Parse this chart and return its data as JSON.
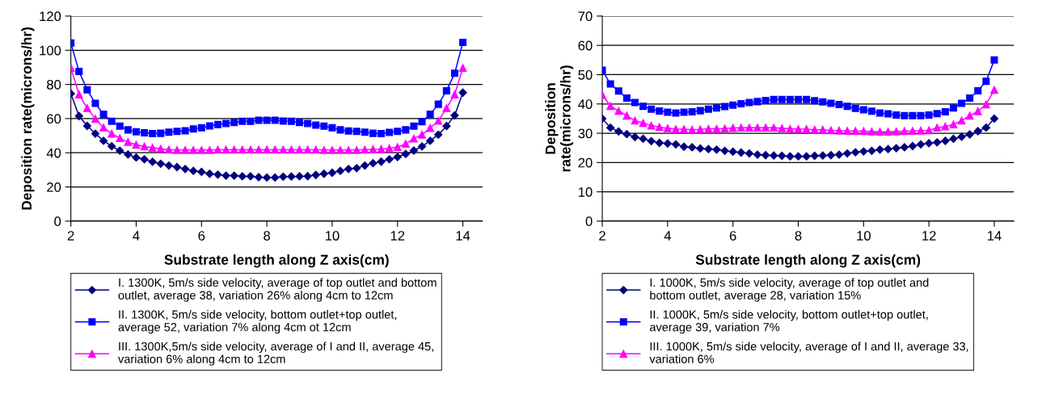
{
  "chart_data": [
    {
      "type": "line",
      "xlabel": "Substrate length along Z axis(cm)",
      "ylabel": "Deposition rate(microns/hr)",
      "xlim": [
        2,
        14.6
      ],
      "xticks": [
        2,
        4,
        6,
        8,
        10,
        12,
        14
      ],
      "ylim": [
        0,
        120
      ],
      "yticks": [
        0,
        20,
        40,
        60,
        80,
        100,
        120
      ],
      "grid": "y",
      "legend": "bottom",
      "x": [
        2,
        2.25,
        2.5,
        2.75,
        3,
        3.25,
        3.5,
        3.75,
        4,
        4.25,
        4.5,
        4.75,
        5,
        5.25,
        5.5,
        5.75,
        6,
        6.25,
        6.5,
        6.75,
        7,
        7.25,
        7.5,
        7.75,
        8,
        8.25,
        8.5,
        8.75,
        9,
        9.25,
        9.5,
        9.75,
        10,
        10.25,
        10.5,
        10.75,
        11,
        11.25,
        11.5,
        11.75,
        12,
        12.25,
        12.5,
        12.75,
        13,
        13.25,
        13.5,
        13.75,
        14
      ],
      "series": [
        {
          "name": "I. 1300K, 5m/s side velocity, average of top outlet and bottom\noutlet, average 38, variation 26% along 4cm to 12cm",
          "color": "#000080",
          "marker": "diamond",
          "values": [
            74.6,
            61.5,
            55.7,
            51.2,
            47,
            43.8,
            41.2,
            39,
            37.2,
            36.2,
            34.7,
            33.6,
            32.5,
            31.6,
            30.5,
            29.4,
            28.8,
            27.7,
            27.2,
            26.6,
            26.6,
            26.2,
            26.2,
            25.7,
            25.5,
            25.5,
            26,
            26.1,
            26.2,
            26.3,
            27,
            27.7,
            28.3,
            29.4,
            30.5,
            31,
            32.5,
            33.9,
            34.8,
            36.2,
            37.5,
            39.3,
            41.3,
            43.7,
            47,
            50.6,
            55.6,
            61.9,
            75.2
          ]
        },
        {
          "name": "II. 1300K, 5m/s side velocity, bottom outlet+top outlet,\naverage 52, variation 7% along 4cm ot 12cm",
          "color": "#0000ff",
          "marker": "square",
          "values": [
            104.2,
            87.6,
            76.9,
            68.9,
            62.5,
            58.4,
            55.6,
            53.4,
            52.3,
            51.7,
            51.2,
            51.4,
            52,
            52.5,
            52.9,
            53.9,
            54.6,
            55.7,
            56.5,
            57.1,
            57.7,
            58.4,
            58.4,
            59,
            59,
            59,
            58.5,
            58.4,
            57.7,
            57.1,
            56.2,
            55.6,
            54.6,
            53.4,
            52.8,
            52.5,
            52,
            51.4,
            51.2,
            51.9,
            52.5,
            53.4,
            55.6,
            58.2,
            62.5,
            68.4,
            76.3,
            86.5,
            104.6
          ]
        },
        {
          "name": "III. 1300K,5m/s side velocity, average of I and II, average 45,\nvariation 6% along 4cm to 12cm",
          "color": "#ff00ff",
          "marker": "triangle",
          "values": [
            89.6,
            74.1,
            66.1,
            59.9,
            54.8,
            51.2,
            48.5,
            46.3,
            44.7,
            43.7,
            42.9,
            42.3,
            41.8,
            41.6,
            41.6,
            41.6,
            41.6,
            41.6,
            41.8,
            41.8,
            41.8,
            41.8,
            41.8,
            41.8,
            41.8,
            41.8,
            41.8,
            41.8,
            41.8,
            41.8,
            41.8,
            41.6,
            41.6,
            41.6,
            41.6,
            41.6,
            41.8,
            42,
            42.1,
            42.6,
            43.3,
            45.2,
            48.3,
            50.6,
            54.5,
            58.7,
            66.1,
            74.1,
            89.6
          ]
        }
      ]
    },
    {
      "type": "line",
      "xlabel": "Substrate length along Z axis(cm)",
      "ylabel": "Deposition\nrate(microns/hr)",
      "xlim": [
        2,
        14.6
      ],
      "xticks": [
        2,
        4,
        6,
        8,
        10,
        12,
        14
      ],
      "ylim": [
        0,
        70
      ],
      "yticks": [
        0,
        10,
        20,
        30,
        40,
        50,
        60,
        70
      ],
      "grid": "y",
      "legend": "bottom",
      "x": [
        2,
        2.25,
        2.5,
        2.75,
        3,
        3.25,
        3.5,
        3.75,
        4,
        4.25,
        4.5,
        4.75,
        5,
        5.25,
        5.5,
        5.75,
        6,
        6.25,
        6.5,
        6.75,
        7,
        7.25,
        7.5,
        7.75,
        8,
        8.25,
        8.5,
        8.75,
        9,
        9.25,
        9.5,
        9.75,
        10,
        10.25,
        10.5,
        10.75,
        11,
        11.25,
        11.5,
        11.75,
        12,
        12.25,
        12.5,
        12.75,
        13,
        13.25,
        13.5,
        13.75,
        14
      ],
      "series": [
        {
          "name": "I. 1000K, 5m/s side velocity, average of top outlet and\nbottom outlet, average 28, variation 15%",
          "color": "#000080",
          "marker": "diamond",
          "values": [
            35,
            31.9,
            30.6,
            29.7,
            28.7,
            28.1,
            27.3,
            26.7,
            26.5,
            26.2,
            25.4,
            25.2,
            24.8,
            24.6,
            24.4,
            24,
            23.7,
            23.4,
            23.1,
            22.7,
            22.5,
            22.4,
            22.3,
            22.1,
            22.1,
            22.1,
            22.3,
            22.4,
            22.5,
            22.7,
            23.1,
            23.5,
            23.8,
            24,
            24.4,
            24.6,
            24.9,
            25.2,
            25.6,
            26.2,
            26.6,
            26.9,
            27.4,
            28.1,
            28.8,
            29.6,
            30.7,
            31.9,
            35
          ]
        },
        {
          "name": "II. 1000K, 5m/s side velocity, bottom outlet+top outlet,\naverage 39, variation 7%",
          "color": "#0000ff",
          "marker": "square",
          "values": [
            51.5,
            46.8,
            44.4,
            42,
            40.5,
            39.2,
            38.2,
            37.6,
            37.2,
            36.9,
            37.2,
            37.3,
            37.7,
            38.2,
            38.6,
            39.1,
            39.6,
            40.1,
            40.5,
            40.8,
            41.2,
            41.5,
            41.5,
            41.5,
            41.5,
            41.5,
            41.1,
            40.7,
            40.2,
            39.8,
            39.2,
            38.5,
            38,
            37.5,
            36.9,
            36.6,
            36.2,
            36,
            36,
            36,
            36.2,
            36.7,
            37.3,
            38.6,
            40.2,
            42,
            44.5,
            47.7,
            55
          ]
        },
        {
          "name": "III. 1000K, 5m/s side velocity, average of I and II, average 33,\nvariation 6%",
          "color": "#ff00ff",
          "marker": "triangle",
          "values": [
            43.1,
            39.3,
            37.6,
            36,
            34.3,
            33.5,
            32.6,
            32.1,
            31.7,
            31.4,
            31.4,
            31.2,
            31.3,
            31.5,
            31.5,
            31.6,
            31.8,
            31.9,
            31.9,
            31.9,
            31.9,
            31.9,
            31.7,
            31.5,
            31.4,
            31.4,
            31.2,
            31.2,
            31,
            30.9,
            30.8,
            30.8,
            30.7,
            30.6,
            30.5,
            30.5,
            30.6,
            30.7,
            30.8,
            30.9,
            31,
            31.9,
            32.3,
            33,
            34.3,
            36,
            37.5,
            39.8,
            44.8
          ]
        }
      ]
    }
  ]
}
